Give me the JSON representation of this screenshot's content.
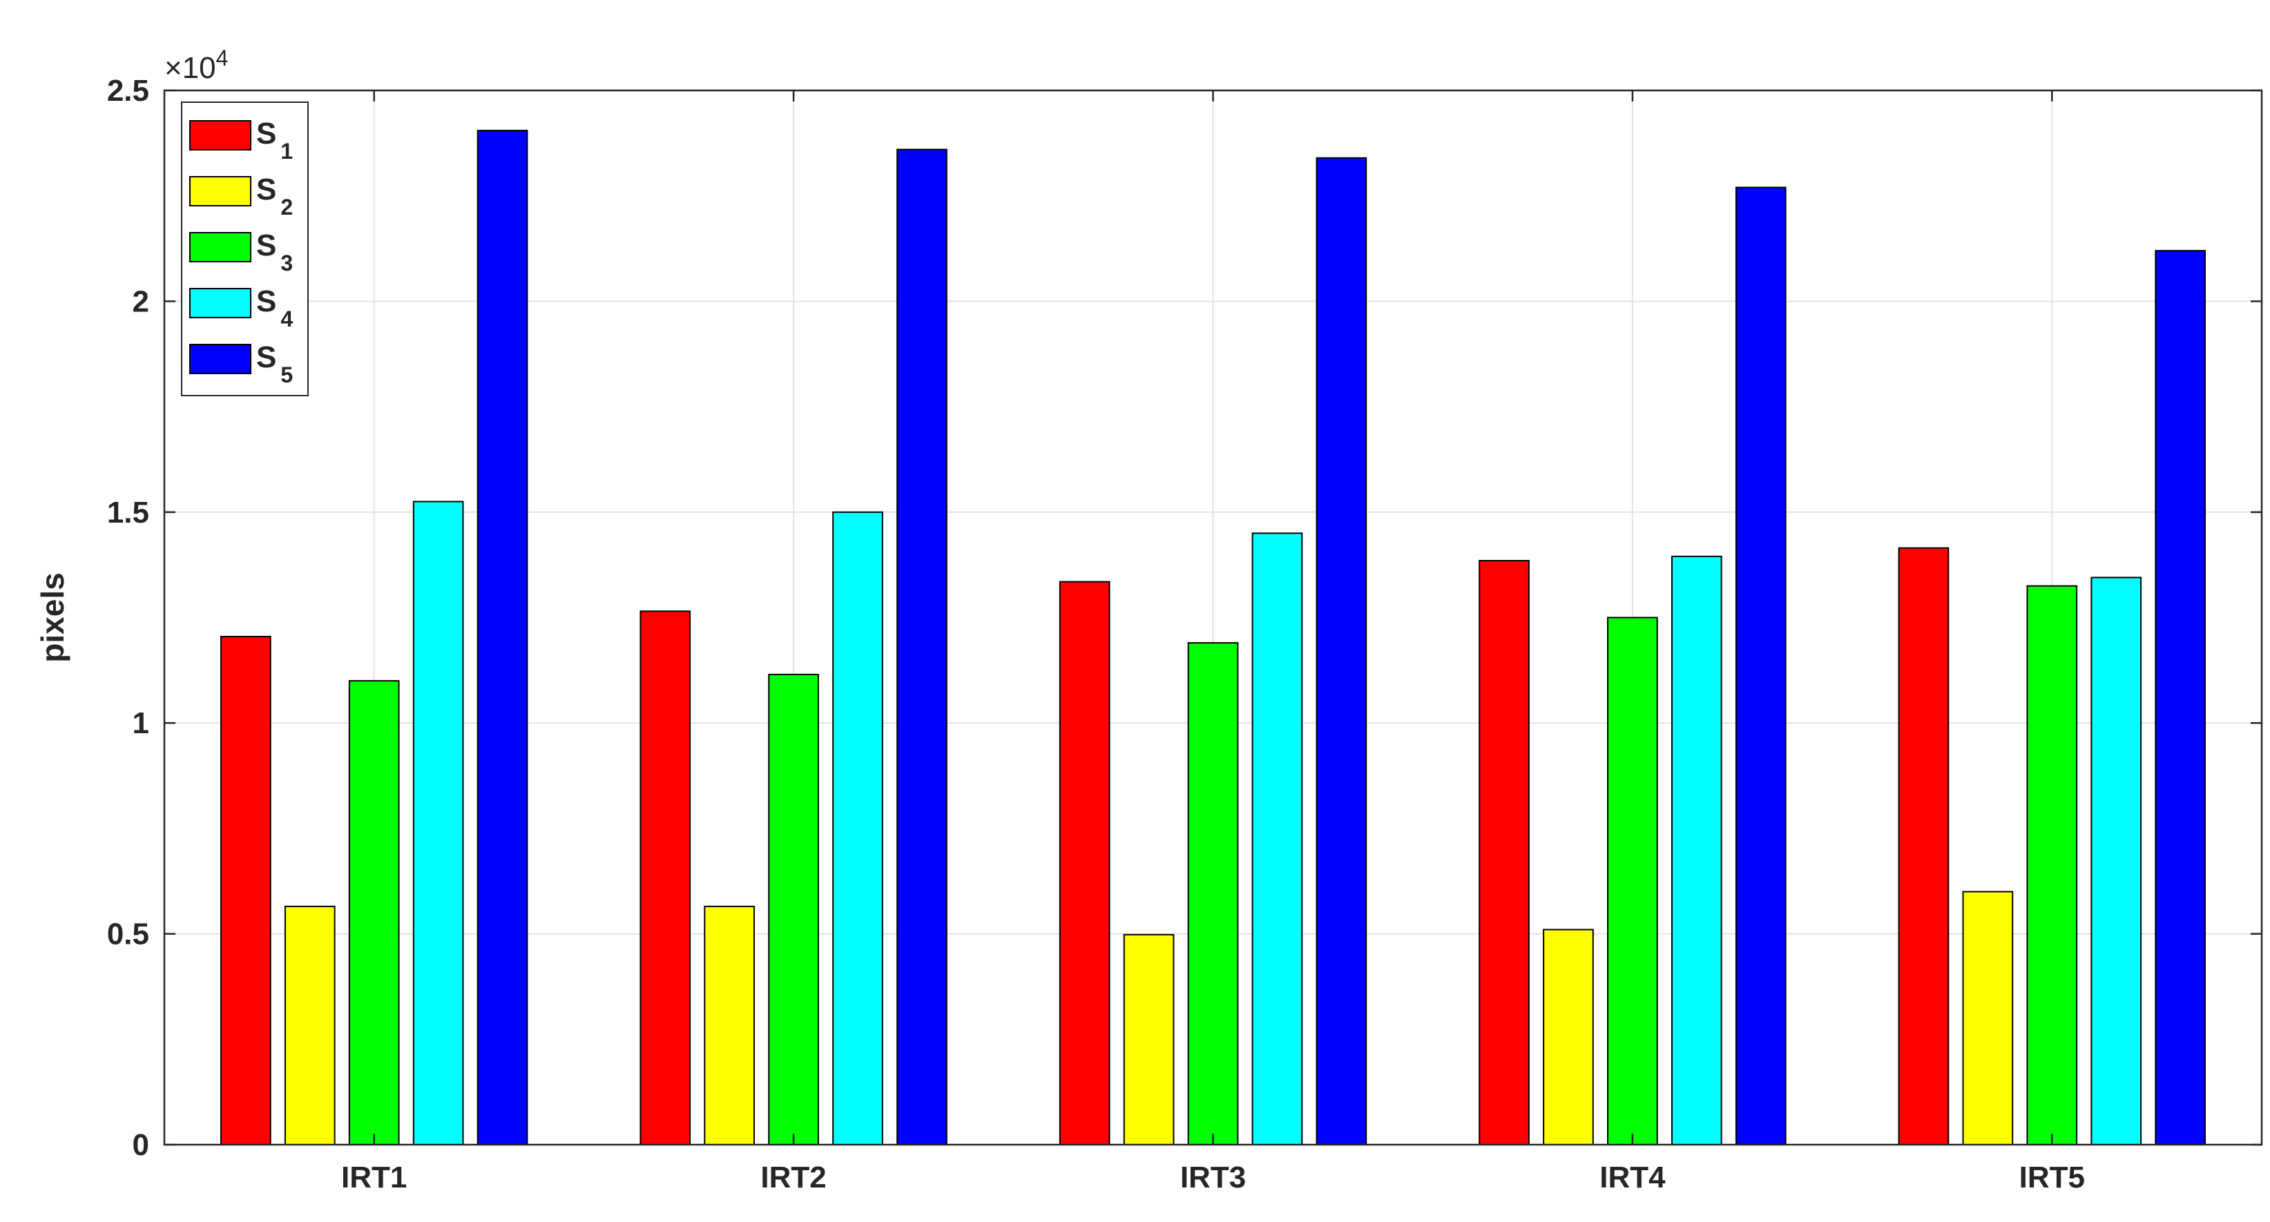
{
  "chart_data": {
    "type": "bar",
    "categories": [
      "IRT1",
      "IRT2",
      "IRT3",
      "IRT4",
      "IRT5"
    ],
    "series": [
      {
        "name": "S",
        "subscript": "1",
        "color": "#ff0000",
        "values": [
          12050,
          12650,
          13350,
          13850,
          14150
        ]
      },
      {
        "name": "S",
        "subscript": "2",
        "color": "#ffff00",
        "values": [
          5650,
          5650,
          4980,
          5100,
          6000
        ]
      },
      {
        "name": "S",
        "subscript": "3",
        "color": "#00ff00",
        "values": [
          11000,
          11150,
          11900,
          12500,
          13250
        ]
      },
      {
        "name": "S",
        "subscript": "4",
        "color": "#00ffff",
        "values": [
          15250,
          15000,
          14500,
          13950,
          13450
        ]
      },
      {
        "name": "S",
        "subscript": "5",
        "color": "#0000ff",
        "values": [
          24050,
          23600,
          23400,
          22700,
          21200
        ]
      }
    ],
    "ylabel": "pixels",
    "xlabel": "",
    "title": "",
    "ylim": [
      0,
      25000
    ],
    "yticks": [
      0,
      5000,
      10000,
      15000,
      20000,
      25000
    ],
    "ytick_labels": [
      "0",
      "0.5",
      "1",
      "1.5",
      "2",
      "2.5"
    ],
    "y_multiplier": {
      "base": "×10",
      "exponent": "4"
    },
    "grid": true,
    "legend_position": "top-left"
  }
}
